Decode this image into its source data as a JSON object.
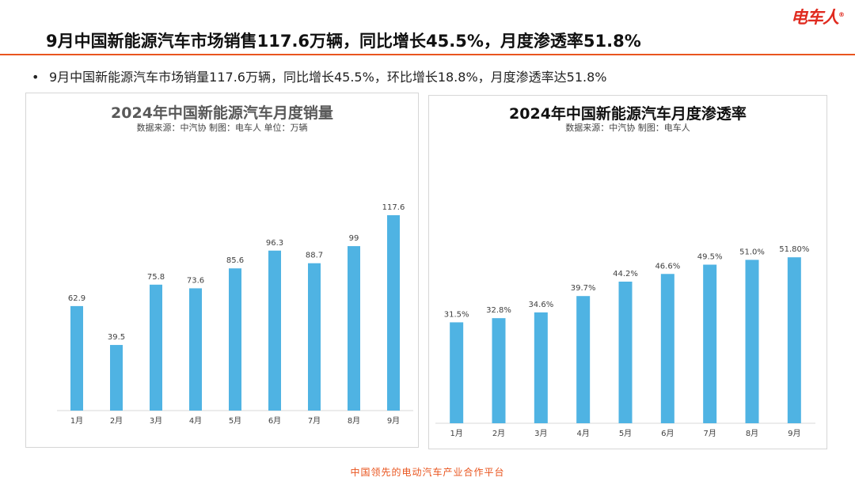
{
  "header": {
    "title": "9月中国新能源汽车市场销售117.6万辆，同比增长45.5%，月度渗透率51.8%",
    "logo_text": "电车人",
    "logo_mark": "®",
    "accent_color": "#e9551f"
  },
  "bullet": {
    "symbol": "•",
    "text": "9月中国新能源汽车市场销量117.6万辆，同比增长45.5%，环比增长18.8%，月度渗透率达51.8%"
  },
  "footer": {
    "text": "中国领先的电动汽车产业合作平台"
  },
  "chart_data": [
    {
      "type": "bar",
      "title": "2024年中国新能源汽车月度销量",
      "subtitle": "数据来源：中汽协    制图：电车人    单位：万辆",
      "categories": [
        "1月",
        "2月",
        "3月",
        "4月",
        "5月",
        "6月",
        "7月",
        "8月",
        "9月"
      ],
      "values": [
        62.9,
        39.5,
        75.8,
        73.6,
        85.6,
        96.3,
        88.7,
        99,
        117.6
      ],
      "data_labels": [
        "62.9",
        "39.5",
        "75.8",
        "73.6",
        "85.6",
        "96.3",
        "88.7",
        "99",
        "117.6"
      ],
      "ylim": [
        0,
        130
      ],
      "grid": false,
      "bar_color": "#4fb3e3"
    },
    {
      "type": "bar",
      "title": "2024年中国新能源汽车月度渗透率",
      "subtitle": "数据来源：中汽协    制图：电车人",
      "categories": [
        "1月",
        "2月",
        "3月",
        "4月",
        "5月",
        "6月",
        "7月",
        "8月",
        "9月"
      ],
      "values": [
        31.5,
        32.8,
        34.6,
        39.7,
        44.2,
        46.6,
        49.5,
        51.0,
        51.8
      ],
      "data_labels": [
        "31.5%",
        "32.8%",
        "34.6%",
        "39.7%",
        "44.2%",
        "46.6%",
        "49.5%",
        "51.0%",
        "51.80%"
      ],
      "ylim": [
        0,
        60
      ],
      "grid": false,
      "bar_color": "#4fb3e3"
    }
  ]
}
